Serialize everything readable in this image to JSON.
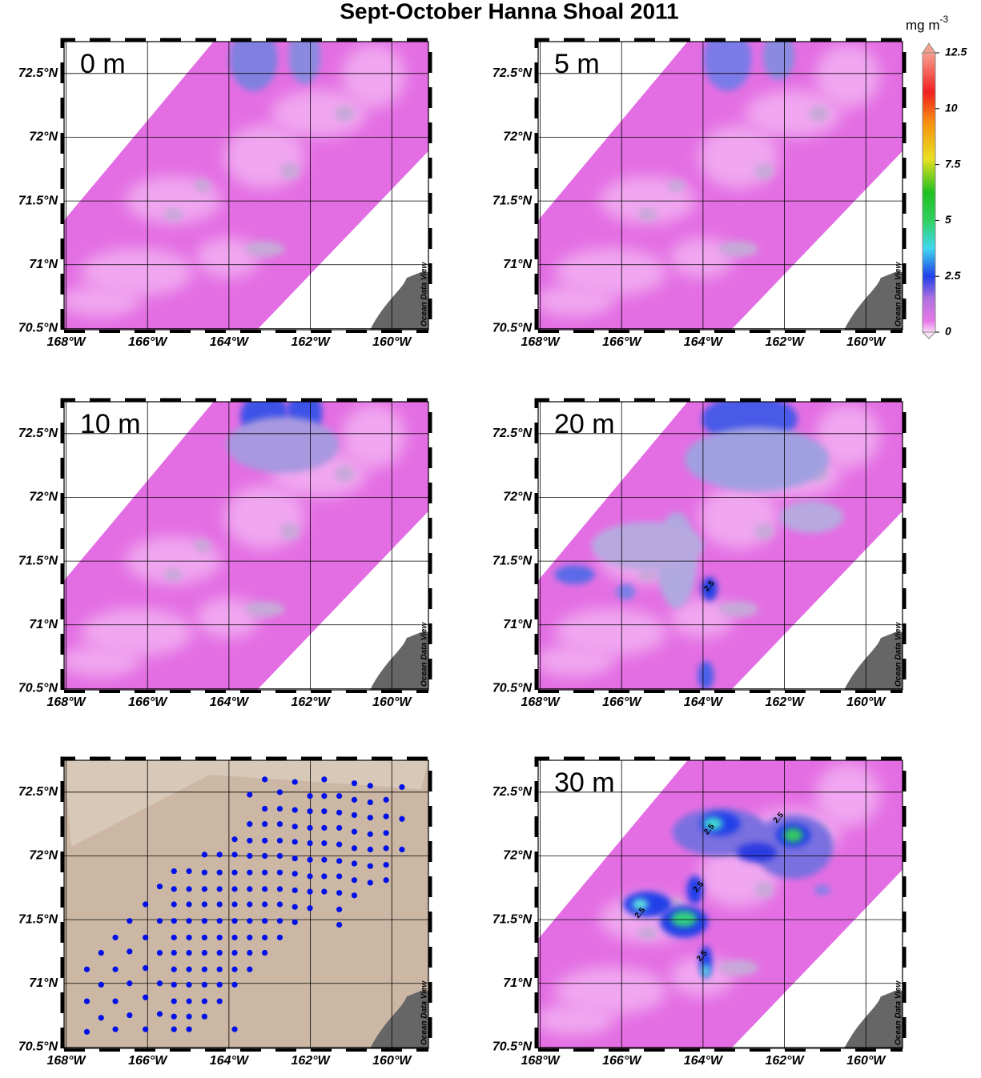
{
  "title": "Sept-October Hanna Shoal 2011",
  "colorbar": {
    "unit": "mg m",
    "unit_exponent": "-3",
    "lim": [
      0,
      12.5
    ],
    "ticks": [
      0,
      2.5,
      5,
      7.5,
      10,
      12.5
    ]
  },
  "axes": {
    "xlim": [
      -168.05,
      -159.1
    ],
    "ylim": [
      70.49,
      72.75
    ],
    "xticks": [
      {
        "value": -168,
        "label": "168°W"
      },
      {
        "value": -166,
        "label": "166°W"
      },
      {
        "value": -164,
        "label": "164°W"
      },
      {
        "value": -162,
        "label": "162°W"
      },
      {
        "value": -160,
        "label": "160°W"
      }
    ],
    "yticks": [
      {
        "value": 70.5,
        "label": "70.5°N"
      },
      {
        "value": 71,
        "label": "71°N"
      },
      {
        "value": 71.5,
        "label": "71.5°N"
      },
      {
        "value": 72,
        "label": "72°N"
      },
      {
        "value": 72.5,
        "label": "72.5°N"
      }
    ]
  },
  "watermark": "Ocean Data View",
  "panels": [
    {
      "label": "0 m",
      "contour_labels": []
    },
    {
      "label": "5 m",
      "contour_labels": []
    },
    {
      "label": "10 m",
      "contour_labels": []
    },
    {
      "label": "20 m",
      "contour_labels": [
        "2.5"
      ]
    },
    {
      "label": "30 m",
      "contour_labels": [
        "2.5",
        "2.5",
        "2.5",
        "2.5",
        "2.5"
      ]
    }
  ],
  "stations": [
    {
      "lon": -167.49,
      "lat": [
        71.11,
        70.86,
        70.62
      ]
    },
    {
      "lon": -167.14,
      "lat": [
        71.24,
        70.99,
        70.73
      ]
    },
    {
      "lon": -166.79,
      "lat": [
        71.36,
        71.11,
        70.86,
        70.64
      ]
    },
    {
      "lon": -166.44,
      "lat": [
        71.49,
        71.25,
        71.0,
        70.75
      ]
    },
    {
      "lon": -166.05,
      "lat": [
        71.62,
        71.36,
        71.12,
        70.89,
        70.64
      ]
    },
    {
      "lon": -165.7,
      "lat": [
        71.76,
        71.49,
        71.24,
        71.0,
        70.76
      ]
    },
    {
      "lon": -165.35,
      "lat": [
        71.88,
        71.74,
        71.62,
        71.49,
        71.36,
        71.24,
        71.11,
        70.99,
        70.86,
        70.74,
        70.64
      ]
    },
    {
      "lon": -164.98,
      "lat": [
        71.88,
        71.74,
        71.62,
        71.49,
        71.36,
        71.24,
        71.11,
        70.99,
        70.86,
        70.74,
        70.64
      ]
    },
    {
      "lon": -164.6,
      "lat": [
        72.01,
        71.87,
        71.74,
        71.62,
        71.49,
        71.36,
        71.24,
        71.11,
        70.99,
        70.86,
        70.74
      ]
    },
    {
      "lon": -164.23,
      "lat": [
        72.01,
        71.87,
        71.74,
        71.62,
        71.49,
        71.36,
        71.24,
        71.11,
        70.99,
        70.86
      ]
    },
    {
      "lon": -163.86,
      "lat": [
        72.13,
        72.01,
        71.87,
        71.74,
        71.62,
        71.49,
        71.36,
        71.24,
        71.11,
        70.99,
        70.64
      ]
    },
    {
      "lon": -163.49,
      "lat": [
        72.25,
        72.12,
        72.0,
        71.87,
        71.74,
        71.62,
        71.49,
        71.36,
        71.24,
        71.11,
        72.48
      ]
    },
    {
      "lon": -163.12,
      "lat": [
        72.37,
        72.25,
        72.12,
        72.0,
        71.87,
        71.74,
        71.62,
        71.49,
        71.36,
        71.24,
        72.6
      ]
    },
    {
      "lon": -162.75,
      "lat": [
        72.5,
        72.37,
        72.25,
        72.12,
        72.0,
        71.87,
        71.74,
        71.62,
        71.49,
        71.36
      ]
    },
    {
      "lon": -162.38,
      "lat": [
        72.36,
        72.23,
        72.11,
        71.98,
        71.86,
        71.73,
        71.6,
        71.48,
        72.58
      ]
    },
    {
      "lon": -162.01,
      "lat": [
        72.47,
        72.35,
        72.22,
        72.1,
        71.97,
        71.84,
        71.72,
        71.59
      ]
    },
    {
      "lon": -161.66,
      "lat": [
        72.6,
        72.47,
        72.35,
        72.22,
        72.1,
        71.97,
        71.84,
        71.72
      ]
    },
    {
      "lon": -161.29,
      "lat": [
        72.47,
        72.34,
        72.22,
        72.09,
        71.96,
        71.84,
        71.71,
        71.58,
        71.46
      ]
    },
    {
      "lon": -160.92,
      "lat": [
        72.57,
        72.44,
        72.32,
        72.19,
        72.06,
        71.94,
        71.81,
        71.69
      ]
    },
    {
      "lon": -160.53,
      "lat": [
        72.55,
        72.42,
        72.3,
        72.17,
        72.05,
        71.92,
        71.79
      ]
    },
    {
      "lon": -160.14,
      "lat": [
        72.44,
        72.31,
        72.18,
        72.06,
        71.93,
        71.81
      ]
    },
    {
      "lon": -159.75,
      "lat": [
        72.54,
        72.29,
        72.05
      ]
    }
  ]
}
